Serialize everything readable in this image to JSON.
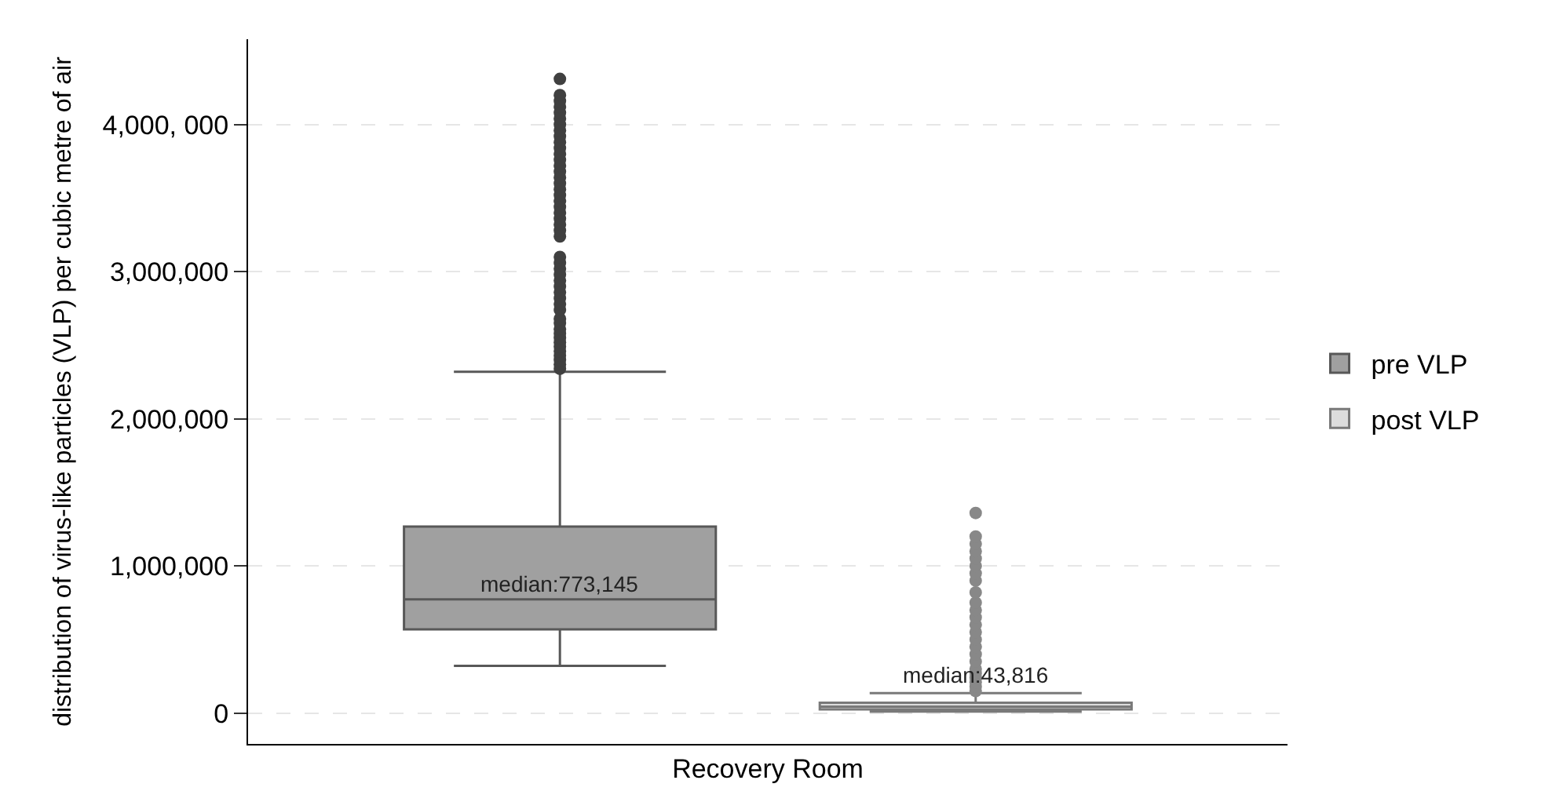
{
  "chart_data": {
    "type": "box",
    "categories": [
      "Recovery Room"
    ],
    "ylabel": "distribution of virus-like particles (VLP) per cubic metre of air",
    "ylim": [
      -210000,
      4580000
    ],
    "yticks": [
      0,
      {
        "value": 1000000,
        "label": "1,000,000"
      },
      {
        "value": 2000000,
        "label": "2,000,000"
      },
      {
        "value": 3000000,
        "label": "3,000,000"
      },
      {
        "value": 4000000,
        "label": "4,000, 000"
      }
    ],
    "grid": "y",
    "legend": "right",
    "series": [
      {
        "name": "pre VLP",
        "color": "#a0a0a0",
        "boxes": [
          {
            "low": 321000,
            "q1": 569000,
            "median": 773145,
            "q3": 1267000,
            "high": 2320000,
            "outliers": [
              2340000,
              2370000,
              2400000,
              2430000,
              2460000,
              2490000,
              2520000,
              2550000,
              2580000,
              2610000,
              2650000,
              2680000,
              2740000,
              2780000,
              2820000,
              2860000,
              2900000,
              2940000,
              2980000,
              3020000,
              3060000,
              3100000,
              3240000,
              3280000,
              3320000,
              3360000,
              3400000,
              3440000,
              3480000,
              3520000,
              3560000,
              3600000,
              3640000,
              3680000,
              3720000,
              3760000,
              3800000,
              3840000,
              3880000,
              3920000,
              3960000,
              4000000,
              4040000,
              4080000,
              4120000,
              4160000,
              4200000,
              4310000
            ]
          }
        ]
      },
      {
        "name": "post VLP",
        "color": "#dcdcdc",
        "boxes": [
          {
            "low": 10000,
            "q1": 25000,
            "median": 43816,
            "q3": 70000,
            "high": 136000,
            "outliers": [
              150000,
              180000,
              210000,
              240000,
              270000,
              300000,
              350000,
              400000,
              450000,
              500000,
              550000,
              600000,
              650000,
              700000,
              750000,
              820000,
              900000,
              950000,
              1000000,
              1050000,
              1100000,
              1150000,
              1200000,
              1360000
            ]
          }
        ]
      }
    ],
    "annotations": [
      "median:773,145",
      "median:43,816"
    ]
  }
}
